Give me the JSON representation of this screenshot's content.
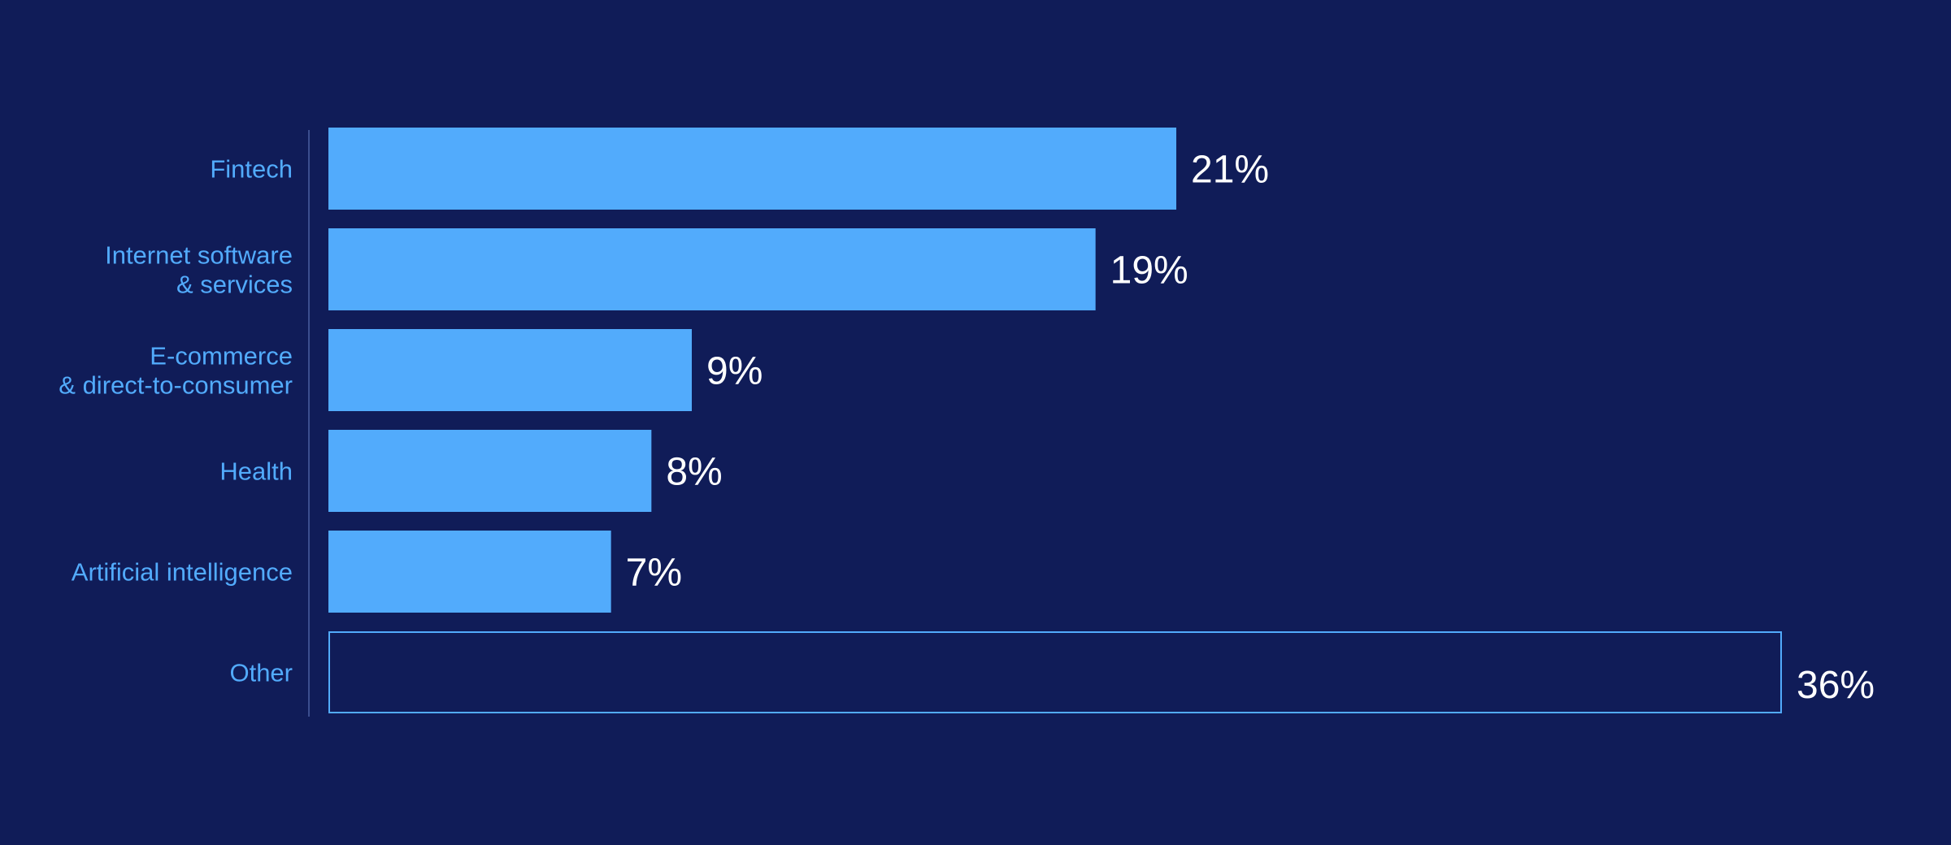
{
  "colors": {
    "background": "#101c58",
    "bar_fill": "#52abfc",
    "outline_bar_stroke": "#52abfc",
    "category_label": "#52abfc",
    "value_label": "#ffffff",
    "axis_line": "#3b4e8e"
  },
  "chart_data": {
    "type": "bar",
    "orientation": "horizontal",
    "title": "",
    "xlabel": "",
    "ylabel": "",
    "xlim": [
      0,
      36
    ],
    "grid": false,
    "legend": "none",
    "categories": [
      [
        "Fintech"
      ],
      [
        "Internet software",
        "& services"
      ],
      [
        "E-commerce",
        "& direct-to-consumer"
      ],
      [
        "Health"
      ],
      [
        "Artificial intelligence"
      ],
      [
        "Other"
      ]
    ],
    "values": [
      21,
      19,
      9,
      8,
      7,
      36
    ],
    "value_labels": [
      "21%",
      "19%",
      "9%",
      "8%",
      "7%",
      "36%"
    ],
    "bar_styles": [
      "filled",
      "filled",
      "filled",
      "filled",
      "filled",
      "outline"
    ]
  }
}
